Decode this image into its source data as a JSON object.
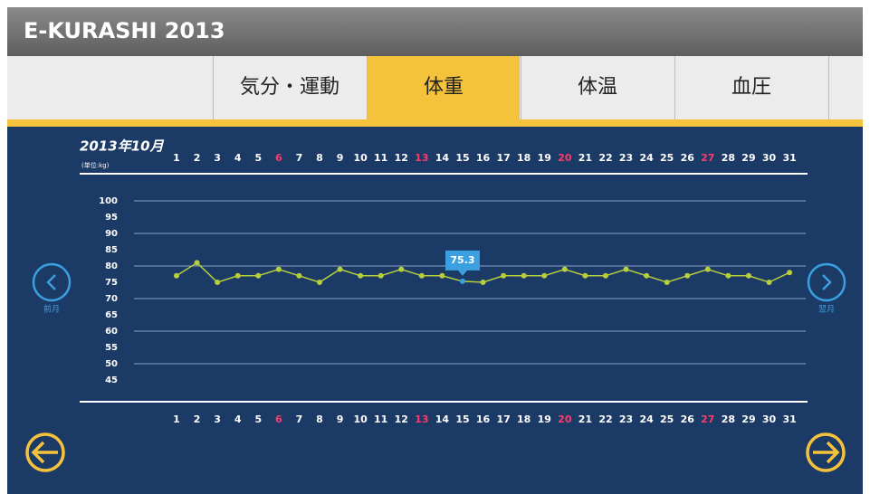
{
  "header": {
    "title": "E-KURASHI 2013"
  },
  "tabs": [
    "気分・運動",
    "体重",
    "体温",
    "血圧"
  ],
  "active_tab": 1,
  "nav": {
    "prev": "前月",
    "next": "翌月"
  },
  "chart_data": {
    "type": "line",
    "title": "2013年10月",
    "unit_label": "(単位:kg)",
    "categories": [
      1,
      2,
      3,
      4,
      5,
      6,
      7,
      8,
      9,
      10,
      11,
      12,
      13,
      14,
      15,
      16,
      17,
      18,
      19,
      20,
      21,
      22,
      23,
      24,
      25,
      26,
      27,
      28,
      29,
      30,
      31
    ],
    "red_categories": [
      6,
      13,
      20,
      27
    ],
    "series": [
      {
        "name": "体重",
        "color": "#b8cf3c",
        "values": [
          77,
          81,
          75,
          77,
          77,
          79,
          77,
          75,
          79,
          77,
          77,
          79,
          77,
          77,
          75.3,
          75,
          77,
          77,
          77,
          79,
          77,
          77,
          79,
          77,
          75,
          77,
          79,
          77,
          77,
          75,
          78
        ]
      }
    ],
    "selected_day": 15,
    "ylim": [
      45,
      100
    ],
    "yticks": [
      45,
      50,
      55,
      60,
      65,
      70,
      75,
      80,
      85,
      90,
      95,
      100
    ],
    "grid_step": 10
  }
}
